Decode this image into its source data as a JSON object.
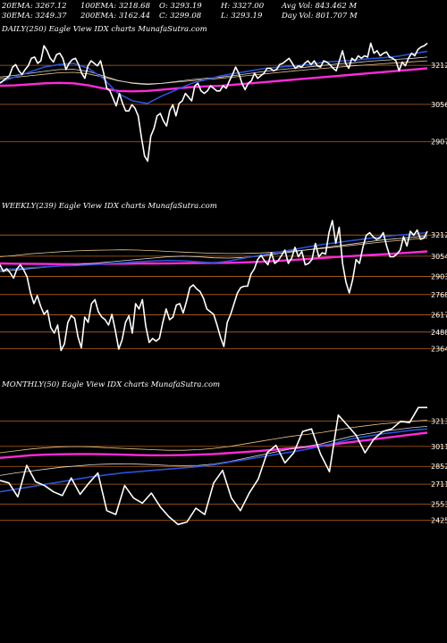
{
  "stats": {
    "row1": [
      "20EMA: 3267.12",
      "100EMA: 3218.68",
      "O: 3293.19",
      "H: 3327.00",
      "Avg Vol: 843.462 M"
    ],
    "row2": [
      "30EMA: 3249.37",
      "200EMA: 3162.44",
      "C: 3299.08",
      "L: 3293.19",
      "Day Vol: 801.707 M"
    ]
  },
  "colors": {
    "background": "#000000",
    "price": "#ffffff",
    "level_lines": "#b8641e",
    "ema_short": "#2a52d8",
    "ema_long": "#ff2ad9",
    "ema_thin": "#d9d9d9",
    "ema_mid": "#e8c38a"
  },
  "chart_data": [
    {
      "type": "line",
      "title": "DAILY(250) Eagle  View IDX  charts MunafaSutra.com",
      "levels": [
        3212,
        3056,
        2907
      ],
      "ylim": [
        2760,
        3330
      ],
      "series": [
        {
          "role": "price",
          "values": [
            3140,
            3150,
            3160,
            3170,
            3205,
            3215,
            3190,
            3175,
            3195,
            3210,
            3240,
            3245,
            3220,
            3230,
            3290,
            3270,
            3240,
            3225,
            3255,
            3260,
            3240,
            3195,
            3220,
            3235,
            3240,
            3215,
            3180,
            3160,
            3210,
            3230,
            3220,
            3210,
            3230,
            3180,
            3120,
            3110,
            3080,
            3050,
            3100,
            3060,
            3030,
            3030,
            3055,
            3040,
            3010,
            2925,
            2850,
            2830,
            2930,
            2960,
            3010,
            3020,
            2990,
            2970,
            3030,
            3055,
            3010,
            3060,
            3070,
            3100,
            3085,
            3070,
            3130,
            3140,
            3110,
            3100,
            3110,
            3130,
            3120,
            3110,
            3110,
            3130,
            3120,
            3150,
            3175,
            3205,
            3180,
            3140,
            3115,
            3140,
            3150,
            3180,
            3160,
            3170,
            3180,
            3200,
            3200,
            3190,
            3195,
            3215,
            3220,
            3230,
            3240,
            3220,
            3200,
            3210,
            3205,
            3220,
            3230,
            3215,
            3230,
            3210,
            3205,
            3230,
            3225,
            3215,
            3200,
            3190,
            3230,
            3270,
            3220,
            3200,
            3240,
            3230,
            3250,
            3240,
            3250,
            3245,
            3300,
            3260,
            3270,
            3250,
            3260,
            3265,
            3245,
            3240,
            3230,
            3190,
            3225,
            3210,
            3240,
            3260,
            3250,
            3275,
            3285,
            3290,
            3300
          ]
        },
        {
          "role": "ema_short",
          "values": [
            3145,
            3165,
            3185,
            3205,
            3215,
            3220,
            3200,
            3160,
            3100,
            3070,
            3060,
            3090,
            3115,
            3140,
            3155,
            3170,
            3180,
            3190,
            3200,
            3205,
            3210,
            3215,
            3225,
            3228,
            3232,
            3238,
            3242,
            3248,
            3258,
            3268
          ]
        },
        {
          "role": "ema_long",
          "values": [
            3130,
            3132,
            3136,
            3140,
            3142,
            3140,
            3132,
            3120,
            3110,
            3108,
            3110,
            3115,
            3120,
            3125,
            3128,
            3130,
            3135,
            3140,
            3145,
            3150,
            3155,
            3160,
            3165,
            3170,
            3175,
            3180,
            3185,
            3190,
            3195,
            3200
          ]
        },
        {
          "role": "ema_thin",
          "values": [
            3165,
            3172,
            3180,
            3188,
            3195,
            3196,
            3188,
            3170,
            3152,
            3140,
            3135,
            3140,
            3148,
            3155,
            3160,
            3165,
            3172,
            3180,
            3188,
            3195,
            3200,
            3206,
            3212,
            3218,
            3222,
            3228,
            3232,
            3236,
            3240,
            3245
          ]
        },
        {
          "role": "ema_mid",
          "values": [
            3158,
            3164,
            3170,
            3176,
            3182,
            3184,
            3178,
            3165,
            3150,
            3142,
            3138,
            3140,
            3145,
            3150,
            3155,
            3160,
            3166,
            3172,
            3178,
            3184,
            3190,
            3195,
            3200,
            3205,
            3210,
            3214,
            3218,
            3222,
            3226,
            3230
          ]
        }
      ]
    },
    {
      "type": "line",
      "title": "WEEKLY(239) Eagle  View IDX  charts MunafaSutra.com",
      "levels": [
        3212,
        3054,
        2903,
        2768,
        2617,
        2488,
        2364
      ],
      "ylim": [
        2300,
        3380
      ],
      "series": [
        {
          "role": "price",
          "values": [
            2990,
            2940,
            2960,
            2930,
            2890,
            2960,
            2990,
            2950,
            2900,
            2780,
            2700,
            2760,
            2680,
            2620,
            2650,
            2520,
            2480,
            2540,
            2350,
            2400,
            2560,
            2610,
            2590,
            2450,
            2370,
            2600,
            2560,
            2700,
            2730,
            2640,
            2600,
            2580,
            2540,
            2620,
            2500,
            2360,
            2430,
            2560,
            2610,
            2480,
            2700,
            2660,
            2730,
            2530,
            2410,
            2440,
            2420,
            2440,
            2560,
            2660,
            2580,
            2600,
            2690,
            2700,
            2630,
            2720,
            2820,
            2840,
            2810,
            2790,
            2740,
            2660,
            2640,
            2620,
            2540,
            2450,
            2380,
            2560,
            2620,
            2700,
            2780,
            2820,
            2830,
            2830,
            2920,
            2960,
            3030,
            3060,
            3020,
            2990,
            3080,
            3000,
            3020,
            3060,
            3100,
            3000,
            3040,
            3120,
            3050,
            3090,
            2990,
            3000,
            3030,
            3150,
            3050,
            3080,
            3070,
            3230,
            3320,
            3150,
            3270,
            3000,
            2860,
            2780,
            2880,
            3030,
            3000,
            3120,
            3210,
            3230,
            3200,
            3180,
            3190,
            3230,
            3130,
            3050,
            3050,
            3070,
            3100,
            3200,
            3130,
            3240,
            3210,
            3250,
            3180,
            3190,
            3240
          ]
        },
        {
          "role": "ema_short",
          "values": [
            2955,
            2960,
            2968,
            2975,
            2982,
            2985,
            2990,
            2998,
            3005,
            3012,
            3018,
            3022,
            3020,
            3012,
            3005,
            3018,
            3040,
            3060,
            3080,
            3100,
            3120,
            3140,
            3155,
            3170,
            3185,
            3200,
            3210,
            3220,
            3230
          ]
        },
        {
          "role": "ema_long",
          "values": [
            3000,
            2998,
            2997,
            2996,
            2995,
            2995,
            2996,
            2997,
            2998,
            2999,
            3000,
            3001,
            3002,
            3003,
            3004,
            3005,
            3008,
            3012,
            3018,
            3025,
            3032,
            3040,
            3048,
            3055,
            3062,
            3068,
            3075,
            3082,
            3090
          ]
        },
        {
          "role": "ema_thin",
          "values": [
            2940,
            2950,
            2962,
            2972,
            2982,
            2990,
            3000,
            3010,
            3020,
            3030,
            3040,
            3050,
            3055,
            3050,
            3042,
            3040,
            3045,
            3055,
            3070,
            3085,
            3100,
            3115,
            3130,
            3145,
            3160,
            3175,
            3185,
            3195,
            3205
          ]
        },
        {
          "role": "ema_mid",
          "values": [
            3050,
            3060,
            3072,
            3080,
            3088,
            3094,
            3098,
            3100,
            3102,
            3100,
            3096,
            3090,
            3085,
            3080,
            3076,
            3074,
            3075,
            3078,
            3085,
            3092,
            3100,
            3110,
            3122,
            3135,
            3148,
            3160,
            3170,
            3180,
            3190
          ]
        }
      ]
    },
    {
      "type": "line",
      "title": "MONTHLY(50) Eagle  View IDX  charts MunafaSutra.com",
      "levels": [
        3213,
        3011,
        2852,
        2711,
        2553,
        2425
      ],
      "ylim": [
        2300,
        3450
      ],
      "series": [
        {
          "role": "price",
          "values": [
            2740,
            2720,
            2610,
            2860,
            2730,
            2700,
            2650,
            2620,
            2760,
            2630,
            2720,
            2800,
            2500,
            2470,
            2700,
            2600,
            2560,
            2640,
            2530,
            2450,
            2390,
            2410,
            2520,
            2470,
            2720,
            2820,
            2600,
            2500,
            2640,
            2750,
            2960,
            3020,
            2880,
            2960,
            3130,
            3150,
            2950,
            2810,
            3260,
            3180,
            3100,
            2960,
            3070,
            3130,
            3150,
            3210,
            3200,
            3320,
            3320
          ]
        },
        {
          "role": "ema_short",
          "values": [
            2650,
            2670,
            2690,
            2710,
            2730,
            2750,
            2770,
            2785,
            2800,
            2810,
            2820,
            2830,
            2840,
            2850,
            2865,
            2885,
            2905,
            2925,
            2945,
            2965,
            2985,
            3010,
            3040,
            3070,
            3090,
            3110,
            3125,
            3140,
            3150
          ]
        },
        {
          "role": "ema_long",
          "values": [
            2920,
            2930,
            2940,
            2945,
            2948,
            2950,
            2950,
            2948,
            2945,
            2942,
            2940,
            2940,
            2942,
            2945,
            2950,
            2958,
            2966,
            2975,
            2985,
            2995,
            3005,
            3015,
            3030,
            3045,
            3060,
            3075,
            3090,
            3105,
            3120
          ]
        },
        {
          "role": "ema_thin",
          "values": [
            2780,
            2800,
            2815,
            2830,
            2845,
            2855,
            2865,
            2870,
            2872,
            2870,
            2866,
            2860,
            2858,
            2860,
            2870,
            2890,
            2915,
            2940,
            2965,
            2990,
            3010,
            3030,
            3060,
            3090,
            3110,
            3130,
            3145,
            3160,
            3170
          ]
        },
        {
          "role": "ema_mid",
          "values": [
            2960,
            2975,
            2990,
            3000,
            3008,
            3010,
            3008,
            3000,
            2995,
            2990,
            2985,
            2980,
            2980,
            2985,
            2995,
            3010,
            3030,
            3050,
            3070,
            3090,
            3105,
            3120,
            3140,
            3160,
            3175,
            3190,
            3200,
            3210,
            3220
          ]
        }
      ]
    }
  ]
}
